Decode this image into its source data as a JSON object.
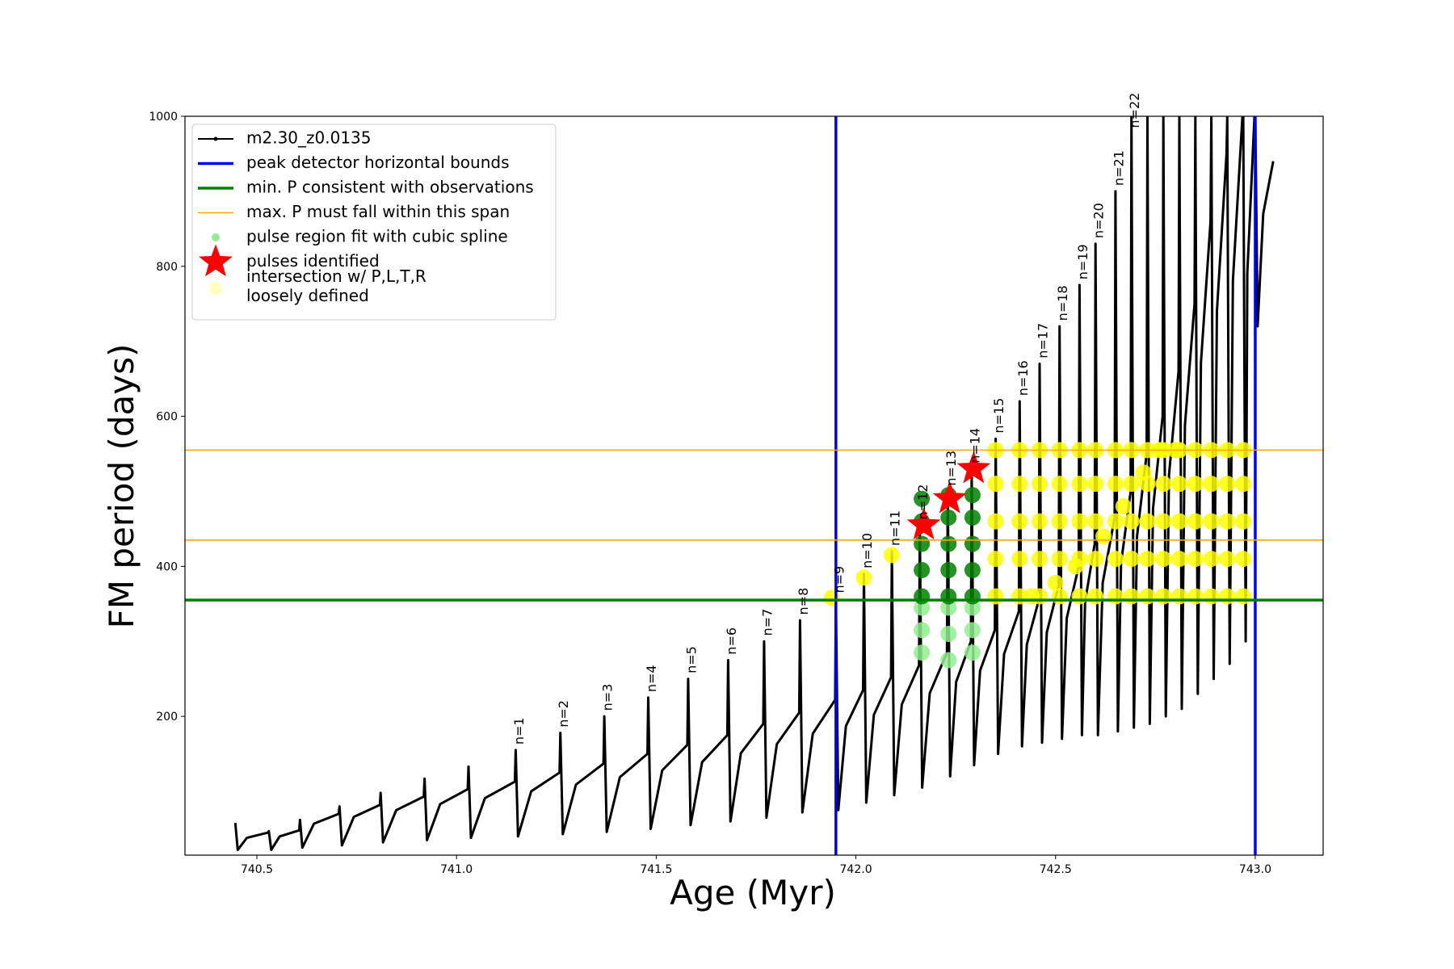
{
  "chart_data": {
    "type": "line",
    "xlabel": "Age (Myr)",
    "ylabel": "FM period (days)",
    "xlim": [
      740.32,
      743.17
    ],
    "ylim": [
      15,
      1000
    ],
    "xticks": [
      740.5,
      {
        "value": 741,
        "label": "741.0"
      },
      741.5,
      {
        "value": 742,
        "label": "742.0"
      },
      742.5,
      {
        "value": 743,
        "label": "743.0"
      }
    ],
    "yticks": [
      200,
      400,
      600,
      800,
      1000
    ],
    "legend": "upper left",
    "series": [
      {
        "name": "m2.30_z0.0135",
        "color": "#000000",
        "kind": "line",
        "x": [
          740.446,
          740.452,
          740.475,
          740.528,
          740.53,
          740.536,
          740.557,
          740.606,
          740.608,
          740.614,
          740.643,
          740.705,
          740.707,
          740.713,
          740.743,
          740.808,
          740.81,
          740.816,
          740.849,
          740.918,
          740.92,
          740.926,
          740.959,
          741.028,
          741.03,
          741.036,
          741.071,
          741.146,
          741.148,
          741.154,
          741.187,
          741.258,
          741.26,
          741.266,
          741.299,
          741.368,
          741.37,
          741.376,
          741.409,
          741.478,
          741.48,
          741.486,
          741.515,
          741.578,
          741.58,
          741.586,
          741.615,
          741.678,
          741.68,
          741.686,
          741.712,
          741.768,
          741.77,
          741.776,
          741.802,
          741.858,
          741.86,
          741.866,
          741.892,
          741.948,
          741.95,
          741.956,
          741.975,
          742.018,
          742.02,
          742.026,
          742.045,
          742.088,
          742.09,
          742.096,
          742.115,
          742.158,
          742.16,
          742.166,
          742.185,
          742.228,
          742.23,
          742.236,
          742.251,
          742.288,
          742.29,
          742.296,
          742.311,
          742.348,
          742.35,
          742.356,
          742.371,
          742.408,
          742.41,
          742.416,
          742.428,
          742.458,
          742.46,
          742.466,
          742.478,
          742.508,
          742.51,
          742.516,
          742.528,
          742.558,
          742.56,
          742.566,
          742.574,
          742.598,
          742.6,
          742.606,
          742.618,
          742.648,
          742.65,
          742.656,
          742.664,
          742.688,
          742.69,
          742.696,
          742.704,
          742.728,
          742.73,
          742.736,
          742.744,
          742.768,
          742.77,
          742.776,
          742.784,
          742.808,
          742.81,
          742.816,
          742.824,
          742.848,
          742.85,
          742.856,
          742.864,
          742.888,
          742.89,
          742.896,
          742.904,
          742.928,
          742.93,
          742.936,
          742.944,
          742.968,
          742.97,
          742.976,
          742.98,
          742.998,
          743.0,
          743.006,
          743.02,
          743.045
        ],
        "values": [
          58,
          22,
          38,
          45,
          47,
          22,
          40,
          48,
          62,
          25,
          57,
          70,
          80,
          28,
          66,
          82,
          98,
          32,
          75,
          93,
          117,
          35,
          83,
          103,
          133,
          38,
          91,
          113,
          155,
          40,
          100,
          125,
          178,
          43,
          109,
          137,
          200,
          46,
          119,
          150,
          225,
          50,
          128,
          162,
          250,
          55,
          139,
          175,
          275,
          60,
          151,
          190,
          300,
          65,
          163,
          205,
          328,
          72,
          177,
          222,
          357,
          75,
          187,
          235,
          390,
          85,
          202,
          252,
          420,
          95,
          216,
          268,
          455,
          105,
          231,
          285,
          500,
          120,
          246,
          300,
          530,
          135,
          261,
          315,
          570,
          150,
          283,
          340,
          620,
          160,
          296,
          355,
          670,
          165,
          312,
          375,
          720,
          170,
          331,
          400,
          775,
          175,
          353,
          430,
          830,
          175,
          378,
          465,
          900,
          180,
          404,
          500,
          1000,
          185,
          440,
          550,
          1000,
          190,
          477,
          600,
          1000,
          200,
          522,
          660,
          1000,
          210,
          588,
          750,
          1000,
          230,
          671,
          860,
          1000,
          250,
          740,
          950,
          1000,
          270,
          781,
          1000,
          1000,
          300,
          790,
          1000,
          1000,
          720,
          870,
          940
        ]
      },
      {
        "name": "intersection w/ P,L,T,R\nloosely defined",
        "color": "#ffff00",
        "kind": "scatter",
        "x": [
          741.94,
          742.02,
          742.09,
          742.35,
          742.35,
          742.35,
          742.35,
          742.35,
          742.41,
          742.41,
          742.41,
          742.41,
          742.41,
          742.46,
          742.46,
          742.46,
          742.46,
          742.46,
          742.51,
          742.51,
          742.51,
          742.51,
          742.51,
          742.56,
          742.56,
          742.56,
          742.56,
          742.56,
          742.6,
          742.6,
          742.6,
          742.6,
          742.6,
          742.65,
          742.65,
          742.65,
          742.65,
          742.65,
          742.69,
          742.69,
          742.69,
          742.69,
          742.69,
          742.73,
          742.73,
          742.73,
          742.73,
          742.73,
          742.77,
          742.77,
          742.77,
          742.77,
          742.77,
          742.81,
          742.81,
          742.81,
          742.81,
          742.81,
          742.85,
          742.85,
          742.85,
          742.85,
          742.85,
          742.89,
          742.89,
          742.89,
          742.89,
          742.89,
          742.93,
          742.93,
          742.93,
          742.93,
          742.93,
          742.97,
          742.97,
          742.97,
          742.97,
          742.97,
          742.44,
          742.5,
          742.55,
          742.62,
          742.67,
          742.72,
          742.76,
          742.8
        ],
        "values": [
          358,
          385,
          415,
          360,
          410,
          460,
          510,
          555,
          360,
          410,
          460,
          510,
          555,
          360,
          410,
          460,
          510,
          555,
          360,
          410,
          460,
          510,
          555,
          360,
          410,
          460,
          510,
          555,
          360,
          410,
          460,
          510,
          555,
          360,
          410,
          460,
          510,
          555,
          360,
          410,
          460,
          510,
          555,
          360,
          410,
          460,
          510,
          555,
          360,
          410,
          460,
          510,
          555,
          360,
          410,
          460,
          510,
          555,
          360,
          410,
          460,
          510,
          555,
          360,
          410,
          460,
          510,
          555,
          360,
          410,
          460,
          510,
          555,
          360,
          410,
          460,
          510,
          555,
          360,
          378,
          400,
          440,
          480,
          525,
          555,
          555
        ]
      },
      {
        "name": "pulse region fit with cubic spline",
        "color": "#90ee90",
        "kind": "scatter",
        "x": [
          742.165,
          742.165,
          742.165,
          742.232,
          742.232,
          742.232,
          742.292,
          742.292,
          742.292
        ],
        "values": [
          285,
          315,
          345,
          275,
          310,
          345,
          285,
          315,
          345
        ]
      },
      {
        "color": "#008000",
        "kind": "scatter",
        "x": [
          742.165,
          742.165,
          742.165,
          742.165,
          742.165,
          742.232,
          742.232,
          742.232,
          742.232,
          742.232,
          742.292,
          742.292,
          742.292,
          742.292,
          742.292
        ],
        "values": [
          360,
          395,
          430,
          460,
          490,
          360,
          395,
          430,
          465,
          495,
          360,
          395,
          430,
          465,
          495
        ]
      },
      {
        "name": "pulses identified",
        "color": "#ff0000",
        "kind": "star",
        "x": [
          742.17,
          742.235,
          742.295
        ],
        "values": [
          455,
          490,
          530
        ]
      },
      {
        "name": "peak detector horizontal bounds",
        "color": "#0000ff",
        "kind": "vline",
        "x": [
          741.95,
          743.0
        ]
      },
      {
        "name": "min. P consistent with observations",
        "color": "#008000",
        "kind": "hline",
        "values": [
          355
        ]
      },
      {
        "name": "max. P must fall within this span",
        "color": "#ffa500",
        "kind": "hline",
        "values": [
          555,
          435
        ]
      }
    ],
    "legend_order": [
      0,
      5,
      6,
      7,
      2,
      4,
      1
    ],
    "annotations": [
      {
        "text": "n=1",
        "x": 741.148,
        "y": 158
      },
      {
        "text": "n=2",
        "x": 741.26,
        "y": 181
      },
      {
        "text": "n=3",
        "x": 741.37,
        "y": 203
      },
      {
        "text": "n=4",
        "x": 741.48,
        "y": 228
      },
      {
        "text": "n=5",
        "x": 741.58,
        "y": 253
      },
      {
        "text": "n=6",
        "x": 741.68,
        "y": 278
      },
      {
        "text": "n=7",
        "x": 741.77,
        "y": 303
      },
      {
        "text": "n=8",
        "x": 741.86,
        "y": 331
      },
      {
        "text": "n=9",
        "x": 741.95,
        "y": 360
      },
      {
        "text": "n=10",
        "x": 742.02,
        "y": 393
      },
      {
        "text": "n=11",
        "x": 742.09,
        "y": 423
      },
      {
        "text": "n=12",
        "x": 742.16,
        "y": 458
      },
      {
        "text": "n=13",
        "x": 742.23,
        "y": 503
      },
      {
        "text": "n=14",
        "x": 742.29,
        "y": 533
      },
      {
        "text": "n=15",
        "x": 742.35,
        "y": 573
      },
      {
        "text": "n=16",
        "x": 742.41,
        "y": 623
      },
      {
        "text": "n=17",
        "x": 742.46,
        "y": 673
      },
      {
        "text": "n=18",
        "x": 742.51,
        "y": 723
      },
      {
        "text": "n=19",
        "x": 742.56,
        "y": 778
      },
      {
        "text": "n=20",
        "x": 742.6,
        "y": 833
      },
      {
        "text": "n=21",
        "x": 742.65,
        "y": 903
      },
      {
        "text": "n=22",
        "x": 742.69,
        "y": 980
      }
    ]
  }
}
